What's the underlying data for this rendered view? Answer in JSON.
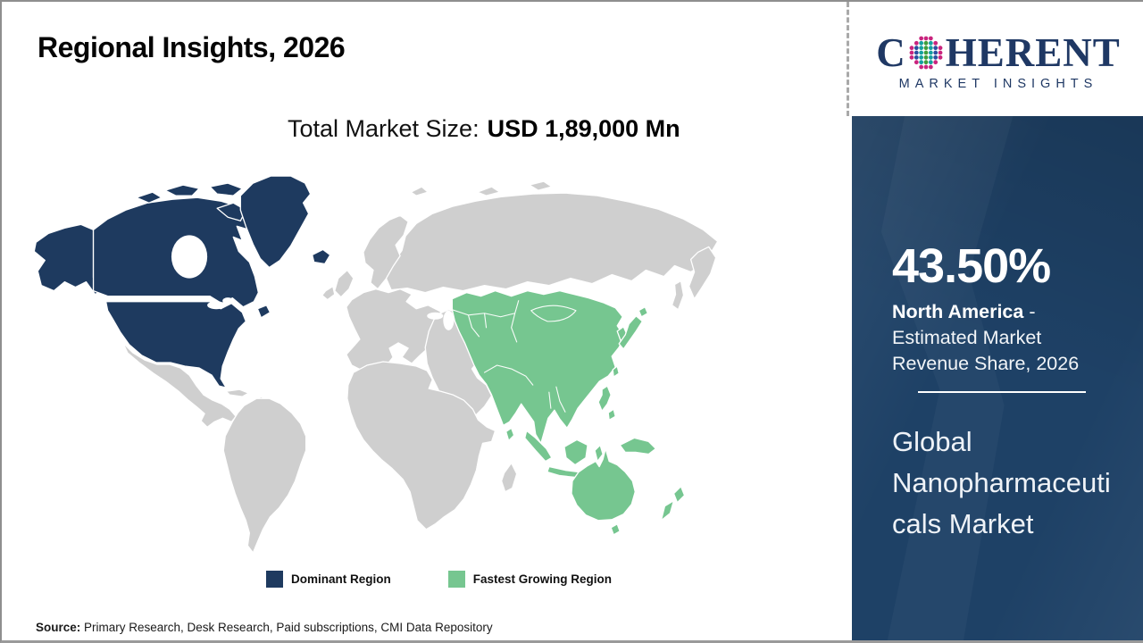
{
  "header": {
    "title": "Regional Insights, 2026"
  },
  "market_size": {
    "label": "Total Market Size:",
    "value": "USD 1,89,000 Mn"
  },
  "logo": {
    "first": "C",
    "rest": "HERENT",
    "subtitle": "MARKET INSIGHTS",
    "globe": {
      "ring": "#c9247e",
      "center": "#3f9e3c",
      "mid": "#14a0a0",
      "outer": "#2b4fa0"
    }
  },
  "legend": {
    "dominant_label": "Dominant Region",
    "fastest_label": "Fastest Growing Region"
  },
  "sidebar": {
    "share_value": "43.50%",
    "share_region": "North America",
    "share_desc": " - Estimated Market Revenue Share, 2026",
    "market_name": "Global Nanopharmaceuticals Market"
  },
  "source": {
    "label": "Source:",
    "text": " Primary Research, Desk Research, Paid subscriptions, CMI Data Repository"
  },
  "colors": {
    "dominant": "#1e3a5f",
    "fastest": "#76c690",
    "land": "#cfcfcf",
    "sidebar": "#1e4166",
    "logo": "#1f3864"
  },
  "chart_data": {
    "type": "heatmap",
    "subtype": "world-choropleth",
    "title": "Regional Insights, 2026",
    "annotation": "Total Market Size: USD 1,89,000 Mn",
    "legend_position": "bottom",
    "legend": [
      {
        "label": "Dominant Region",
        "color": "#1e3a5f",
        "regions": [
          "North America",
          "Greenland",
          "Iceland"
        ]
      },
      {
        "label": "Fastest Growing Region",
        "color": "#76c690",
        "regions": [
          "Asia Pacific",
          "India",
          "China",
          "Southeast Asia",
          "Japan",
          "Australia",
          "New Zealand"
        ]
      }
    ],
    "data_points": [
      {
        "region": "North America",
        "metric": "Estimated Market Revenue Share, 2026",
        "value": 43.5,
        "unit": "%"
      }
    ]
  }
}
